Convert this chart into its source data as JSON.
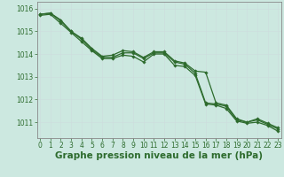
{
  "x": [
    0,
    1,
    2,
    3,
    4,
    5,
    6,
    7,
    8,
    9,
    10,
    11,
    12,
    13,
    14,
    15,
    16,
    17,
    18,
    19,
    20,
    21,
    22,
    23
  ],
  "line1": [
    1015.75,
    1015.8,
    1015.5,
    1015.0,
    1014.7,
    1014.25,
    1013.9,
    1013.95,
    1014.15,
    1014.1,
    1013.85,
    1014.1,
    1014.1,
    1013.7,
    1013.6,
    1013.25,
    1013.2,
    1011.85,
    1011.75,
    1011.15,
    1011.0,
    1011.15,
    1010.95,
    1010.75
  ],
  "line2": [
    1015.75,
    1015.8,
    1015.45,
    1015.0,
    1014.65,
    1014.2,
    1013.85,
    1013.85,
    1014.05,
    1014.05,
    1013.8,
    1014.05,
    1014.05,
    1013.65,
    1013.55,
    1013.15,
    1011.85,
    1011.8,
    1011.7,
    1011.1,
    1011.0,
    1011.1,
    1010.9,
    1010.7
  ],
  "line3": [
    1015.7,
    1015.75,
    1015.35,
    1014.95,
    1014.55,
    1014.15,
    1013.8,
    1013.8,
    1013.95,
    1013.9,
    1013.65,
    1014.0,
    1014.0,
    1013.5,
    1013.45,
    1013.05,
    1011.8,
    1011.75,
    1011.6,
    1011.05,
    1010.95,
    1011.0,
    1010.85,
    1010.6
  ],
  "bg_color": "#cce8e0",
  "line_color": "#2d6b2d",
  "grid_color_minor": "#ccdddd",
  "grid_color_major": "#aabbbb",
  "ylabel_values": [
    1011,
    1012,
    1013,
    1014,
    1015,
    1016
  ],
  "xlabel_label": "Graphe pression niveau de la mer (hPa)",
  "ylim": [
    1010.3,
    1016.3
  ],
  "xlim": [
    -0.3,
    23.3
  ]
}
